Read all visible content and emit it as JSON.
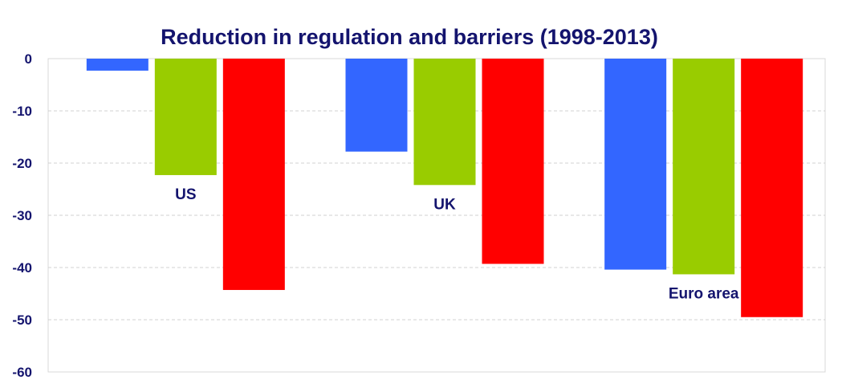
{
  "chart_data": {
    "type": "bar",
    "title": "Reduction in regulation and barriers (1998-2013)",
    "xlabel": "",
    "ylabel": "",
    "ylim": [
      -60,
      0
    ],
    "yticks": [
      0,
      -10,
      -20,
      -30,
      -40,
      -50,
      -60
    ],
    "grid": true,
    "categories": [
      "US",
      "UK",
      "Euro area"
    ],
    "series": [
      {
        "name": "series-1",
        "color": "#3366ff",
        "values": [
          -2.3,
          -17.8,
          -40.4
        ]
      },
      {
        "name": "series-2",
        "color": "#99cc00",
        "values": [
          -22.3,
          -24.2,
          -41.3
        ]
      },
      {
        "name": "series-3",
        "color": "#ff0000",
        "values": [
          -44.3,
          -39.3,
          -49.5
        ]
      }
    ]
  }
}
